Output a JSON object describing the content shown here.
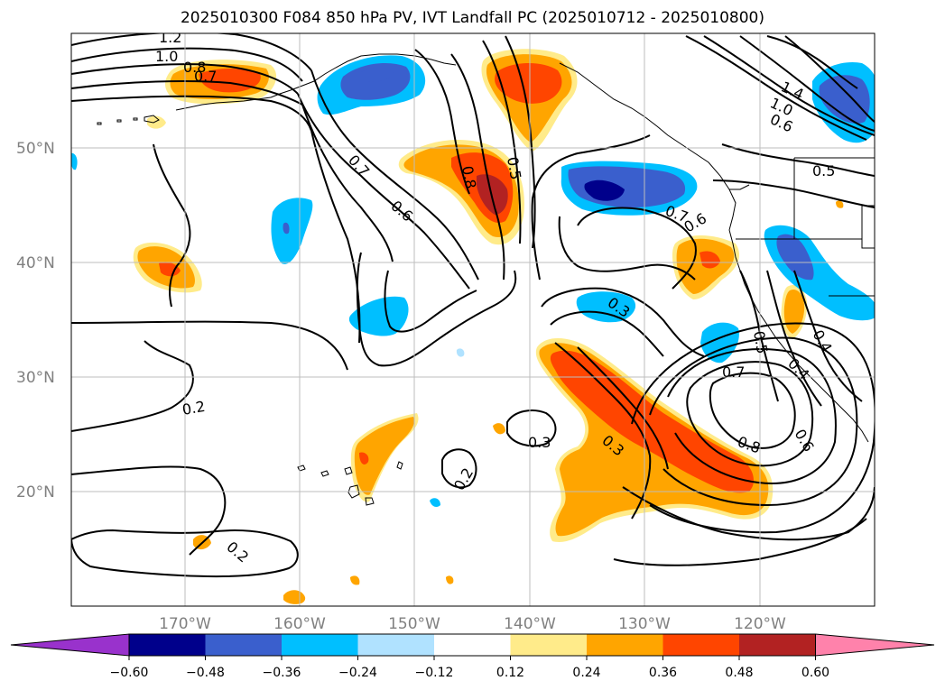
{
  "title": "2025010300 F084 850 hPa PV, IVT Landfall PC (2025010712 - 2025010800)",
  "lat_labels": [
    "50°N",
    "40°N",
    "30°N",
    "20°N"
  ],
  "lon_labels": [
    "170°W",
    "160°W",
    "150°W",
    "140°W",
    "130°W",
    "120°W"
  ],
  "colorbar": {
    "ticks": [
      "−0.60",
      "−0.48",
      "−0.36",
      "−0.24",
      "−0.12",
      "0.12",
      "0.24",
      "0.36",
      "0.48",
      "0.60"
    ],
    "colors": [
      "#9932cc",
      "#00008b",
      "#3a5fcd",
      "#00bfff",
      "#b0e2ff",
      "#ffffff",
      "#ffeb8a",
      "#ffa500",
      "#ff4500",
      "#b22222",
      "#ff82ab"
    ]
  },
  "contour_labels": [
    "1.2",
    "1.0",
    "0.8",
    "0.7",
    "0.8",
    "0.5",
    "0.7",
    "0.6",
    "0.2",
    "0.2",
    "0.3",
    "0.2",
    "0.3",
    "0.3",
    "0.7",
    "0.6",
    "0.7",
    "0.8",
    "0.5",
    "0.4",
    "0.6",
    "1.4",
    "1.0",
    "0.6",
    "0.5",
    "0.4"
  ],
  "fill_colors": {
    "light_orange": "#ffeb8a",
    "orange": "#ffa500",
    "red_orange": "#ff4500",
    "dark_red": "#b22222",
    "light_blue": "#b0e2ff",
    "blue": "#00bfff",
    "royal_blue": "#3a5fcd",
    "navy": "#00008b"
  }
}
